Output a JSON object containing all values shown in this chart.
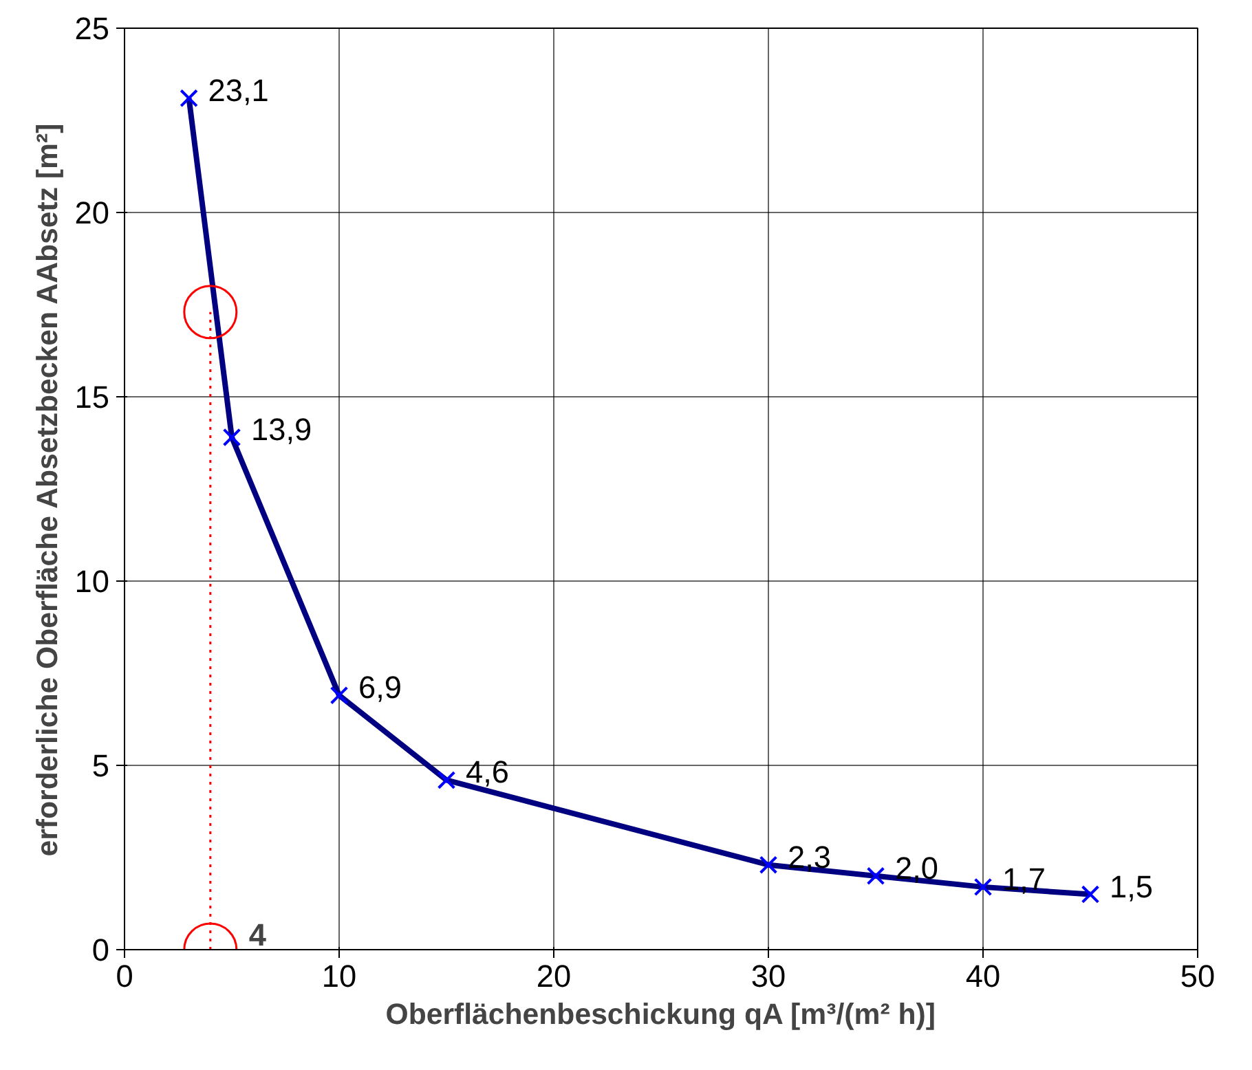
{
  "chart_data": {
    "type": "line",
    "xlabel": "Oberflächenbeschickung qA [m³/(m² h)]",
    "ylabel": "erforderliche Oberfläche Absetzbecken AAbsetz [m²]",
    "xlim": [
      0,
      50
    ],
    "xticks": [
      0,
      10,
      20,
      30,
      40,
      50
    ],
    "ylim": [
      0,
      25
    ],
    "yticks": [
      0,
      5,
      10,
      15,
      20,
      25
    ],
    "grid": true,
    "series": [
      {
        "color": "#000080",
        "marker": "cross",
        "x": [
          3,
          5,
          10,
          15,
          30,
          35,
          40,
          45
        ],
        "values": [
          23.1,
          13.9,
          6.9,
          4.6,
          2.3,
          2.0,
          1.7,
          1.5
        ],
        "value_labels": [
          "23,1",
          "13,9",
          "6,9",
          "4,6",
          "2,3",
          "2,0",
          "1,7",
          "1,5"
        ]
      },
      {
        "type": "line",
        "color": "#ff0000",
        "marker": "none",
        "line_style": "dotted",
        "x": [
          4,
          4
        ],
        "values": [
          0,
          17.3
        ]
      },
      {
        "type": "scatter",
        "color": "#ff0000",
        "marker": "circle",
        "x": [
          4,
          4
        ],
        "values": [
          17.3,
          0
        ]
      }
    ],
    "annotations": [
      {
        "text": "4",
        "x": 4,
        "y": 0
      }
    ]
  }
}
